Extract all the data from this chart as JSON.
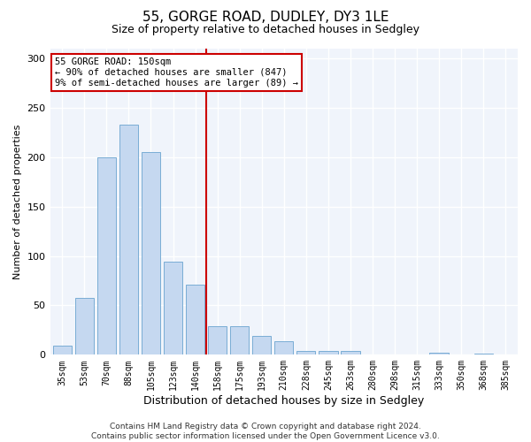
{
  "title": "55, GORGE ROAD, DUDLEY, DY3 1LE",
  "subtitle": "Size of property relative to detached houses in Sedgley",
  "xlabel": "Distribution of detached houses by size in Sedgley",
  "ylabel": "Number of detached properties",
  "categories": [
    "35sqm",
    "53sqm",
    "70sqm",
    "88sqm",
    "105sqm",
    "123sqm",
    "140sqm",
    "158sqm",
    "175sqm",
    "193sqm",
    "210sqm",
    "228sqm",
    "245sqm",
    "263sqm",
    "280sqm",
    "298sqm",
    "315sqm",
    "333sqm",
    "350sqm",
    "368sqm",
    "385sqm"
  ],
  "values": [
    9,
    58,
    200,
    233,
    205,
    94,
    71,
    29,
    29,
    19,
    14,
    4,
    4,
    4,
    0,
    0,
    0,
    2,
    0,
    1,
    0
  ],
  "bar_color": "#c5d8f0",
  "bar_edge_color": "#7aadd4",
  "vline_color": "#cc0000",
  "annotation_text": "55 GORGE ROAD: 150sqm\n← 90% of detached houses are smaller (847)\n9% of semi-detached houses are larger (89) →",
  "annotation_box_color": "#ffffff",
  "annotation_box_edge": "#cc0000",
  "footer1": "Contains HM Land Registry data © Crown copyright and database right 2024.",
  "footer2": "Contains public sector information licensed under the Open Government Licence v3.0.",
  "ylim": [
    0,
    310
  ],
  "yticks": [
    0,
    50,
    100,
    150,
    200,
    250,
    300
  ],
  "background_color": "#ffffff",
  "plot_background": "#f0f4fb",
  "title_fontsize": 11,
  "subtitle_fontsize": 9,
  "ylabel_fontsize": 8,
  "xlabel_fontsize": 9,
  "annotation_fontsize": 7.5,
  "footer_fontsize": 6.5,
  "vline_x_index": 7
}
